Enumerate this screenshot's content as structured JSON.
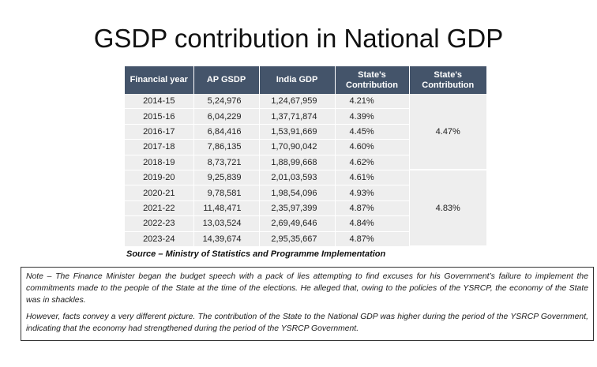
{
  "title": "GSDP contribution in National GDP",
  "table": {
    "headers": [
      "Financial year",
      "AP GSDP",
      "India GDP",
      "State's Contribution",
      "State's Contribution"
    ],
    "rows": [
      [
        "2014-15",
        "5,24,976",
        "1,24,67,959",
        "4.21%"
      ],
      [
        "2015-16",
        "6,04,229",
        "1,37,71,874",
        "4.39%"
      ],
      [
        "2016-17",
        "6,84,416",
        "1,53,91,669",
        "4.45%"
      ],
      [
        "2017-18",
        "7,86,135",
        "1,70,90,042",
        "4.60%"
      ],
      [
        "2018-19",
        "8,73,721",
        "1,88,99,668",
        "4.62%"
      ],
      [
        "2019-20",
        "9,25,839",
        "2,01,03,593",
        "4.61%"
      ],
      [
        "2020-21",
        "9,78,581",
        "1,98,54,096",
        "4.93%"
      ],
      [
        "2021-22",
        "11,48,471",
        "2,35,97,399",
        "4.87%"
      ],
      [
        "2022-23",
        "13,03,524",
        "2,69,49,646",
        "4.84%"
      ],
      [
        "2023-24",
        "14,39,674",
        "2,95,35,667",
        "4.87%"
      ]
    ],
    "period_averages": [
      "4.47%",
      "4.83%"
    ],
    "source": "Source – Ministry of Statistics and Programme Implementation"
  },
  "note": {
    "paragraph1": "Note – The Finance Minister began the budget speech with a pack of lies attempting to find excuses for his Government’s failure to implement the commitments made to the people of the State at the time of the elections. He alleged that, owing to the policies of the YSRCP, the economy of the State was in shackles.",
    "paragraph2": "However, facts convey a very different picture. The contribution of the State to the National GDP was higher during the period of the YSRCP Government, indicating that the economy had strengthened during the period of the YSRCP Government."
  }
}
